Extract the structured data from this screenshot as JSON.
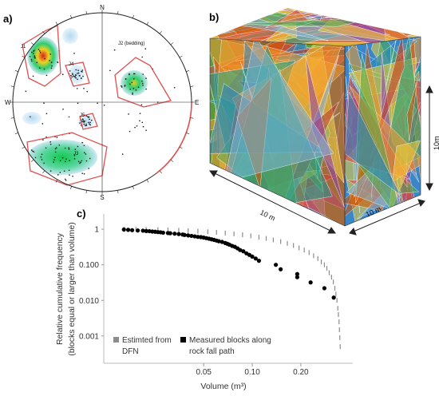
{
  "panels": {
    "a": {
      "label": "a)",
      "compass": {
        "n": "N",
        "s": "S",
        "e": "E",
        "w": "W"
      },
      "sets": [
        "J1",
        "J2 (bedding)",
        "J3",
        "J4",
        "J5"
      ]
    },
    "b": {
      "label": "b)",
      "dimensions": {
        "x": "10 m",
        "y": "10 m",
        "z": "10m"
      }
    },
    "c": {
      "label": "c)"
    }
  },
  "colors": {
    "density_high": "#d62020",
    "density_mid": "#f0d020",
    "density_low": "#2ecc71",
    "density_faint": "#cfe8f5",
    "outline": "#e05050",
    "dfn_marker": "#8c8c8c",
    "measured_marker": "#000000"
  },
  "chart_data": {
    "type": "scatter",
    "xscale": "log",
    "yscale": "log",
    "xlabel": "Volume (m³)",
    "ylabel": "Relative cumulative frequency",
    "ylabel2": "(blocks equal or larger than volume)",
    "xlim": [
      0.012,
      0.42
    ],
    "ylim": [
      0.0002,
      1.6
    ],
    "xticks": [
      {
        "value": 0.05,
        "label": "0.05"
      },
      {
        "value": 0.1,
        "label": "0.10"
      },
      {
        "value": 0.2,
        "label": "0.20"
      }
    ],
    "yticks": [
      {
        "value": 1,
        "label": "1"
      },
      {
        "value": 0.1,
        "label": "0.100"
      },
      {
        "value": 0.01,
        "label": "0.010"
      },
      {
        "value": 0.001,
        "label": "0.001"
      }
    ],
    "legend": [
      {
        "label_line1": "Estimted from",
        "label_line2": "DFN",
        "color": "#8c8c8c"
      },
      {
        "label_line1": "Measured blocks along",
        "label_line2": "rock fall path",
        "color": "#000000"
      }
    ],
    "series": [
      {
        "name": "Estimted from DFN",
        "marker": "bar",
        "points": [
          [
            0.016,
            1.0
          ],
          [
            0.019,
            0.99
          ],
          [
            0.022,
            0.98
          ],
          [
            0.026,
            0.97
          ],
          [
            0.03,
            0.95
          ],
          [
            0.035,
            0.93
          ],
          [
            0.04,
            0.91
          ],
          [
            0.046,
            0.88
          ],
          [
            0.053,
            0.85
          ],
          [
            0.06,
            0.82
          ],
          [
            0.068,
            0.78
          ],
          [
            0.077,
            0.74
          ],
          [
            0.087,
            0.7
          ],
          [
            0.098,
            0.65
          ],
          [
            0.11,
            0.6
          ],
          [
            0.122,
            0.55
          ],
          [
            0.135,
            0.5
          ],
          [
            0.15,
            0.45
          ],
          [
            0.165,
            0.4
          ],
          [
            0.18,
            0.35
          ],
          [
            0.195,
            0.3
          ],
          [
            0.21,
            0.26
          ],
          [
            0.225,
            0.22
          ],
          [
            0.24,
            0.18
          ],
          [
            0.255,
            0.15
          ],
          [
            0.268,
            0.12
          ],
          [
            0.28,
            0.1
          ],
          [
            0.29,
            0.08
          ],
          [
            0.3,
            0.06
          ],
          [
            0.31,
            0.045
          ],
          [
            0.318,
            0.033
          ],
          [
            0.325,
            0.022
          ],
          [
            0.33,
            0.015
          ],
          [
            0.335,
            0.01
          ],
          [
            0.339,
            0.006
          ],
          [
            0.342,
            0.004
          ],
          [
            0.345,
            0.0025
          ],
          [
            0.347,
            0.0015
          ],
          [
            0.349,
            0.0009
          ],
          [
            0.351,
            0.0005
          ]
        ]
      },
      {
        "name": "Measured blocks along rock fall path",
        "marker": "circle",
        "points": [
          [
            0.016,
            0.98
          ],
          [
            0.017,
            0.96
          ],
          [
            0.018,
            0.94
          ],
          [
            0.0195,
            0.92
          ],
          [
            0.021,
            0.91
          ],
          [
            0.022,
            0.89
          ],
          [
            0.023,
            0.88
          ],
          [
            0.024,
            0.86
          ],
          [
            0.025,
            0.85
          ],
          [
            0.026,
            0.83
          ],
          [
            0.027,
            0.82
          ],
          [
            0.028,
            0.8
          ],
          [
            0.03,
            0.78
          ],
          [
            0.031,
            0.77
          ],
          [
            0.033,
            0.75
          ],
          [
            0.035,
            0.73
          ],
          [
            0.037,
            0.71
          ],
          [
            0.038,
            0.69
          ],
          [
            0.04,
            0.67
          ],
          [
            0.042,
            0.65
          ],
          [
            0.044,
            0.63
          ],
          [
            0.046,
            0.61
          ],
          [
            0.048,
            0.6
          ],
          [
            0.05,
            0.58
          ],
          [
            0.052,
            0.56
          ],
          [
            0.054,
            0.54
          ],
          [
            0.056,
            0.52
          ],
          [
            0.058,
            0.5
          ],
          [
            0.06,
            0.48
          ],
          [
            0.062,
            0.46
          ],
          [
            0.065,
            0.44
          ],
          [
            0.068,
            0.41
          ],
          [
            0.07,
            0.39
          ],
          [
            0.072,
            0.37
          ],
          [
            0.075,
            0.34
          ],
          [
            0.078,
            0.32
          ],
          [
            0.081,
            0.29
          ],
          [
            0.084,
            0.26
          ],
          [
            0.088,
            0.24
          ],
          [
            0.092,
            0.21
          ],
          [
            0.096,
            0.19
          ],
          [
            0.1,
            0.17
          ],
          [
            0.105,
            0.15
          ],
          [
            0.11,
            0.13
          ],
          [
            0.14,
            0.1
          ],
          [
            0.15,
            0.075
          ],
          [
            0.19,
            0.055
          ],
          [
            0.19,
            0.045
          ],
          [
            0.23,
            0.032
          ],
          [
            0.28,
            0.022
          ],
          [
            0.32,
            0.012
          ]
        ]
      }
    ]
  }
}
